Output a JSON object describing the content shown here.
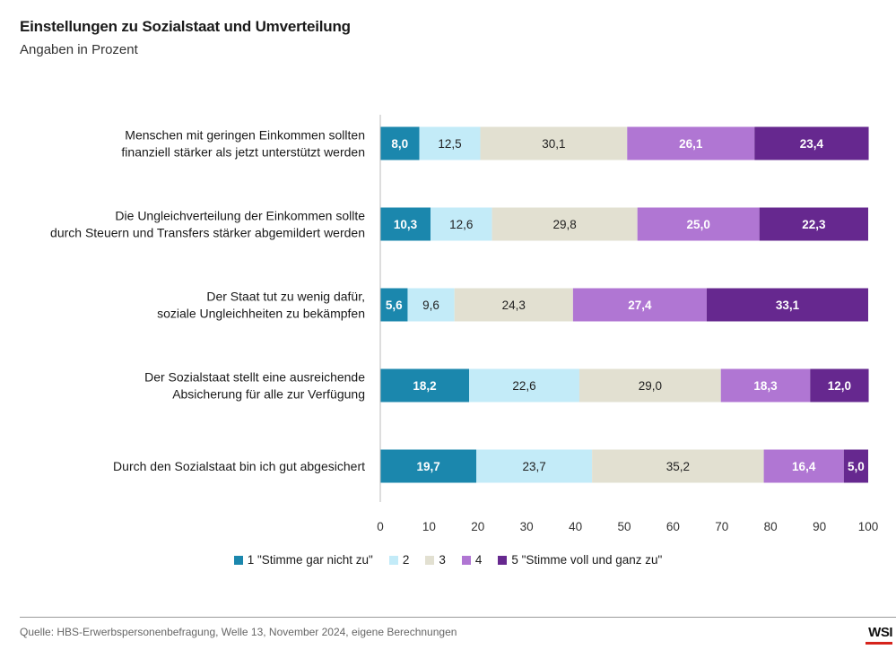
{
  "header": {
    "title": "Einstellungen zu Sozialstaat und Umverteilung",
    "subtitle": "Angaben in Prozent"
  },
  "chart_data": {
    "type": "bar",
    "orientation": "horizontal",
    "stacked": true,
    "categories": [
      [
        "Menschen mit geringen Einkommen sollten",
        "finanziell stärker als jetzt unterstützt werden"
      ],
      [
        "Die Ungleichverteilung der Einkommen sollte",
        "durch Steuern und Transfers stärker abgemildert werden"
      ],
      [
        "Der Staat tut zu wenig dafür,",
        "soziale Ungleichheiten zu bekämpfen"
      ],
      [
        "Der Sozialstaat stellt eine ausreichende",
        "Absicherung für alle zur Verfügung"
      ],
      [
        "Durch den Sozialstaat bin ich gut abgesichert"
      ]
    ],
    "series": [
      {
        "name": "1 \"Stimme gar nicht zu\"",
        "color": "#1b87ad",
        "label_color": "#ffffff",
        "values": [
          8.0,
          10.3,
          5.6,
          18.2,
          19.7
        ],
        "labels": [
          "8,0",
          "10,3",
          "5,6",
          "18,2",
          "19,7"
        ]
      },
      {
        "name": "2",
        "color": "#c3ebf8",
        "label_color": "#222222",
        "values": [
          12.5,
          12.6,
          9.6,
          22.6,
          23.7
        ],
        "labels": [
          "12,5",
          "12,6",
          "9,6",
          "22,6",
          "23,7"
        ]
      },
      {
        "name": "3",
        "color": "#e2e0d1",
        "label_color": "#222222",
        "values": [
          30.1,
          29.8,
          24.3,
          29.0,
          35.2
        ],
        "labels": [
          "30,1",
          "29,8",
          "24,3",
          "29,0",
          "35,2"
        ]
      },
      {
        "name": "4",
        "color": "#b076d3",
        "label_color": "#ffffff",
        "values": [
          26.1,
          25.0,
          27.4,
          18.3,
          16.4
        ],
        "labels": [
          "26,1",
          "25,0",
          "27,4",
          "18,3",
          "16,4"
        ]
      },
      {
        "name": "5 \"Stimme voll und ganz zu\"",
        "color": "#66288f",
        "label_color": "#ffffff",
        "values": [
          23.4,
          22.3,
          33.1,
          12.0,
          5.0
        ],
        "labels": [
          "23,4",
          "22,3",
          "33,1",
          "12,0",
          "5,0"
        ]
      }
    ],
    "xlim": [
      0,
      100
    ],
    "xticks": [
      0,
      10,
      20,
      30,
      40,
      50,
      60,
      70,
      80,
      90,
      100
    ],
    "grid": false,
    "legend_position": "bottom"
  },
  "footer": {
    "source": "Quelle: HBS-Erwerbspersonenbefragung, Welle 13, November 2024, eigene Berechnungen",
    "logo": "WSI"
  }
}
